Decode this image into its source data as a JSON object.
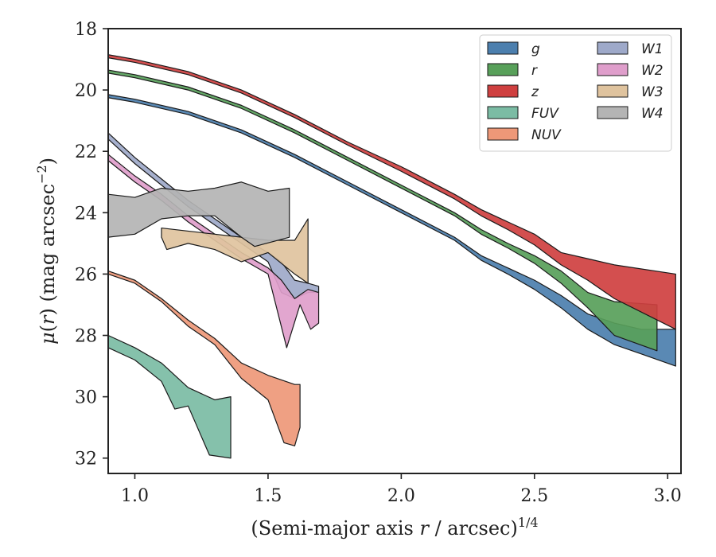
{
  "chart_data": {
    "type": "area",
    "xlabel": "(Semi-major axis r / arcsec)",
    "xlabel_italic_part": "r",
    "xlabel_superscript": "1/4",
    "ylabel": "μ(r) (mag arcsec",
    "ylabel_superscript": "−2",
    "ylabel_close": ")",
    "xlim": [
      0.9,
      3.05
    ],
    "ylim": [
      32.5,
      18
    ],
    "y_inverted": true,
    "x_ticks": [
      1.0,
      1.5,
      2.0,
      2.5,
      3.0
    ],
    "x_tick_labels": [
      "1.0",
      "1.5",
      "2.0",
      "2.5",
      "3.0"
    ],
    "y_ticks": [
      18,
      20,
      22,
      24,
      26,
      28,
      30,
      32
    ],
    "y_tick_labels": [
      "18",
      "20",
      "22",
      "24",
      "26",
      "28",
      "30",
      "32"
    ],
    "grid": false,
    "legend_position": "top-right",
    "legend_columns": 2,
    "series": [
      {
        "name": "g",
        "color": "#4c7fae",
        "upper": [
          [
            0.9,
            20.15
          ],
          [
            1.0,
            20.3
          ],
          [
            1.2,
            20.7
          ],
          [
            1.4,
            21.3
          ],
          [
            1.6,
            22.1
          ],
          [
            1.8,
            23.0
          ],
          [
            2.0,
            23.9
          ],
          [
            2.2,
            24.8
          ],
          [
            2.3,
            25.4
          ],
          [
            2.4,
            25.8
          ],
          [
            2.5,
            26.2
          ],
          [
            2.6,
            26.7
          ],
          [
            2.7,
            27.3
          ],
          [
            2.8,
            27.6
          ],
          [
            2.9,
            27.8
          ],
          [
            3.03,
            27.8
          ]
        ],
        "lower": [
          [
            0.9,
            20.25
          ],
          [
            1.0,
            20.4
          ],
          [
            1.2,
            20.8
          ],
          [
            1.4,
            21.4
          ],
          [
            1.6,
            22.2
          ],
          [
            1.8,
            23.1
          ],
          [
            2.0,
            24.0
          ],
          [
            2.2,
            24.9
          ],
          [
            2.3,
            25.55
          ],
          [
            2.4,
            26.0
          ],
          [
            2.5,
            26.5
          ],
          [
            2.6,
            27.1
          ],
          [
            2.7,
            27.8
          ],
          [
            2.8,
            28.3
          ],
          [
            2.9,
            28.6
          ],
          [
            3.03,
            29.0
          ]
        ]
      },
      {
        "name": "r",
        "color": "#58a05a",
        "upper": [
          [
            0.9,
            19.35
          ],
          [
            1.0,
            19.5
          ],
          [
            1.2,
            19.9
          ],
          [
            1.4,
            20.5
          ],
          [
            1.6,
            21.3
          ],
          [
            1.8,
            22.2
          ],
          [
            2.0,
            23.1
          ],
          [
            2.2,
            24.0
          ],
          [
            2.3,
            24.55
          ],
          [
            2.4,
            25.0
          ],
          [
            2.5,
            25.4
          ],
          [
            2.6,
            25.9
          ],
          [
            2.7,
            26.6
          ],
          [
            2.8,
            26.9
          ],
          [
            2.96,
            27.0
          ]
        ],
        "lower": [
          [
            0.9,
            19.45
          ],
          [
            1.0,
            19.6
          ],
          [
            1.2,
            20.0
          ],
          [
            1.4,
            20.6
          ],
          [
            1.6,
            21.4
          ],
          [
            1.8,
            22.3
          ],
          [
            2.0,
            23.2
          ],
          [
            2.2,
            24.1
          ],
          [
            2.3,
            24.7
          ],
          [
            2.4,
            25.15
          ],
          [
            2.5,
            25.65
          ],
          [
            2.6,
            26.3
          ],
          [
            2.7,
            27.1
          ],
          [
            2.8,
            28.0
          ],
          [
            2.96,
            28.5
          ]
        ]
      },
      {
        "name": "z",
        "color": "#cf4040",
        "upper": [
          [
            0.9,
            18.85
          ],
          [
            1.0,
            19.0
          ],
          [
            1.2,
            19.4
          ],
          [
            1.4,
            20.0
          ],
          [
            1.6,
            20.8
          ],
          [
            1.8,
            21.7
          ],
          [
            2.0,
            22.5
          ],
          [
            2.2,
            23.4
          ],
          [
            2.3,
            23.9
          ],
          [
            2.4,
            24.3
          ],
          [
            2.5,
            24.7
          ],
          [
            2.6,
            25.3
          ],
          [
            2.7,
            25.5
          ],
          [
            2.8,
            25.7
          ],
          [
            3.03,
            26.0
          ]
        ],
        "lower": [
          [
            0.9,
            18.95
          ],
          [
            1.0,
            19.1
          ],
          [
            1.2,
            19.5
          ],
          [
            1.4,
            20.1
          ],
          [
            1.6,
            20.9
          ],
          [
            1.8,
            21.8
          ],
          [
            2.0,
            22.65
          ],
          [
            2.2,
            23.55
          ],
          [
            2.3,
            24.1
          ],
          [
            2.4,
            24.55
          ],
          [
            2.5,
            25.05
          ],
          [
            2.6,
            25.7
          ],
          [
            2.7,
            26.2
          ],
          [
            2.8,
            26.8
          ],
          [
            3.03,
            27.8
          ]
        ]
      },
      {
        "name": "FUV",
        "color": "#7bbca4",
        "upper": [
          [
            0.9,
            28.0
          ],
          [
            1.0,
            28.4
          ],
          [
            1.1,
            28.9
          ],
          [
            1.2,
            29.7
          ],
          [
            1.3,
            30.1
          ],
          [
            1.36,
            30.0
          ]
        ],
        "lower": [
          [
            0.9,
            28.4
          ],
          [
            1.0,
            28.8
          ],
          [
            1.1,
            29.5
          ],
          [
            1.15,
            30.4
          ],
          [
            1.2,
            30.3
          ],
          [
            1.28,
            31.9
          ],
          [
            1.36,
            32.0
          ]
        ]
      },
      {
        "name": "NUV",
        "color": "#ee9878",
        "upper": [
          [
            0.9,
            25.9
          ],
          [
            1.0,
            26.2
          ],
          [
            1.1,
            26.8
          ],
          [
            1.2,
            27.5
          ],
          [
            1.3,
            28.1
          ],
          [
            1.4,
            28.9
          ],
          [
            1.5,
            29.3
          ],
          [
            1.6,
            29.6
          ],
          [
            1.62,
            29.6
          ]
        ],
        "lower": [
          [
            0.9,
            26.0
          ],
          [
            1.0,
            26.3
          ],
          [
            1.1,
            26.9
          ],
          [
            1.2,
            27.7
          ],
          [
            1.3,
            28.3
          ],
          [
            1.4,
            29.4
          ],
          [
            1.5,
            30.1
          ],
          [
            1.56,
            31.5
          ],
          [
            1.6,
            31.6
          ],
          [
            1.62,
            31.0
          ]
        ]
      },
      {
        "name": "W1",
        "color": "#9ea9c9",
        "upper": [
          [
            0.9,
            21.4
          ],
          [
            1.0,
            22.2
          ],
          [
            1.1,
            22.9
          ],
          [
            1.2,
            23.6
          ],
          [
            1.3,
            24.2
          ],
          [
            1.4,
            24.8
          ],
          [
            1.5,
            25.3
          ],
          [
            1.55,
            25.6
          ],
          [
            1.6,
            26.2
          ],
          [
            1.65,
            26.3
          ],
          [
            1.69,
            26.4
          ]
        ],
        "lower": [
          [
            0.9,
            21.6
          ],
          [
            1.0,
            22.4
          ],
          [
            1.1,
            23.1
          ],
          [
            1.2,
            23.8
          ],
          [
            1.3,
            24.4
          ],
          [
            1.4,
            25.0
          ],
          [
            1.5,
            25.6
          ],
          [
            1.55,
            26.6
          ],
          [
            1.6,
            26.8
          ],
          [
            1.65,
            26.6
          ],
          [
            1.69,
            26.6
          ]
        ]
      },
      {
        "name": "W2",
        "color": "#df9ecb",
        "upper": [
          [
            0.9,
            22.1
          ],
          [
            1.0,
            22.8
          ],
          [
            1.1,
            23.4
          ],
          [
            1.2,
            24.1
          ],
          [
            1.3,
            24.7
          ],
          [
            1.4,
            25.3
          ],
          [
            1.5,
            25.8
          ],
          [
            1.55,
            26.2
          ],
          [
            1.6,
            26.8
          ],
          [
            1.65,
            26.5
          ],
          [
            1.69,
            26.6
          ]
        ],
        "lower": [
          [
            0.9,
            22.3
          ],
          [
            1.0,
            23.0
          ],
          [
            1.1,
            23.6
          ],
          [
            1.2,
            24.3
          ],
          [
            1.3,
            24.9
          ],
          [
            1.4,
            25.5
          ],
          [
            1.5,
            26.0
          ],
          [
            1.57,
            28.4
          ],
          [
            1.62,
            27.0
          ],
          [
            1.66,
            27.8
          ],
          [
            1.69,
            27.6
          ]
        ]
      },
      {
        "name": "W3",
        "color": "#dfc39e",
        "upper": [
          [
            1.1,
            24.5
          ],
          [
            1.2,
            24.6
          ],
          [
            1.3,
            24.7
          ],
          [
            1.4,
            24.8
          ],
          [
            1.5,
            24.9
          ],
          [
            1.6,
            24.9
          ],
          [
            1.65,
            24.2
          ]
        ],
        "lower": [
          [
            1.1,
            24.8
          ],
          [
            1.12,
            25.2
          ],
          [
            1.2,
            25.0
          ],
          [
            1.3,
            25.2
          ],
          [
            1.4,
            25.6
          ],
          [
            1.5,
            25.3
          ],
          [
            1.6,
            26.0
          ],
          [
            1.65,
            26.3
          ]
        ]
      },
      {
        "name": "W4",
        "color": "#b4b4b4",
        "upper": [
          [
            0.9,
            23.4
          ],
          [
            1.0,
            23.5
          ],
          [
            1.1,
            23.2
          ],
          [
            1.2,
            23.3
          ],
          [
            1.3,
            23.2
          ],
          [
            1.4,
            23.0
          ],
          [
            1.5,
            23.3
          ],
          [
            1.58,
            23.2
          ]
        ],
        "lower": [
          [
            0.9,
            24.8
          ],
          [
            1.0,
            24.7
          ],
          [
            1.1,
            24.2
          ],
          [
            1.2,
            24.1
          ],
          [
            1.3,
            24.1
          ],
          [
            1.4,
            24.8
          ],
          [
            1.45,
            25.1
          ],
          [
            1.58,
            24.8
          ]
        ]
      }
    ]
  }
}
